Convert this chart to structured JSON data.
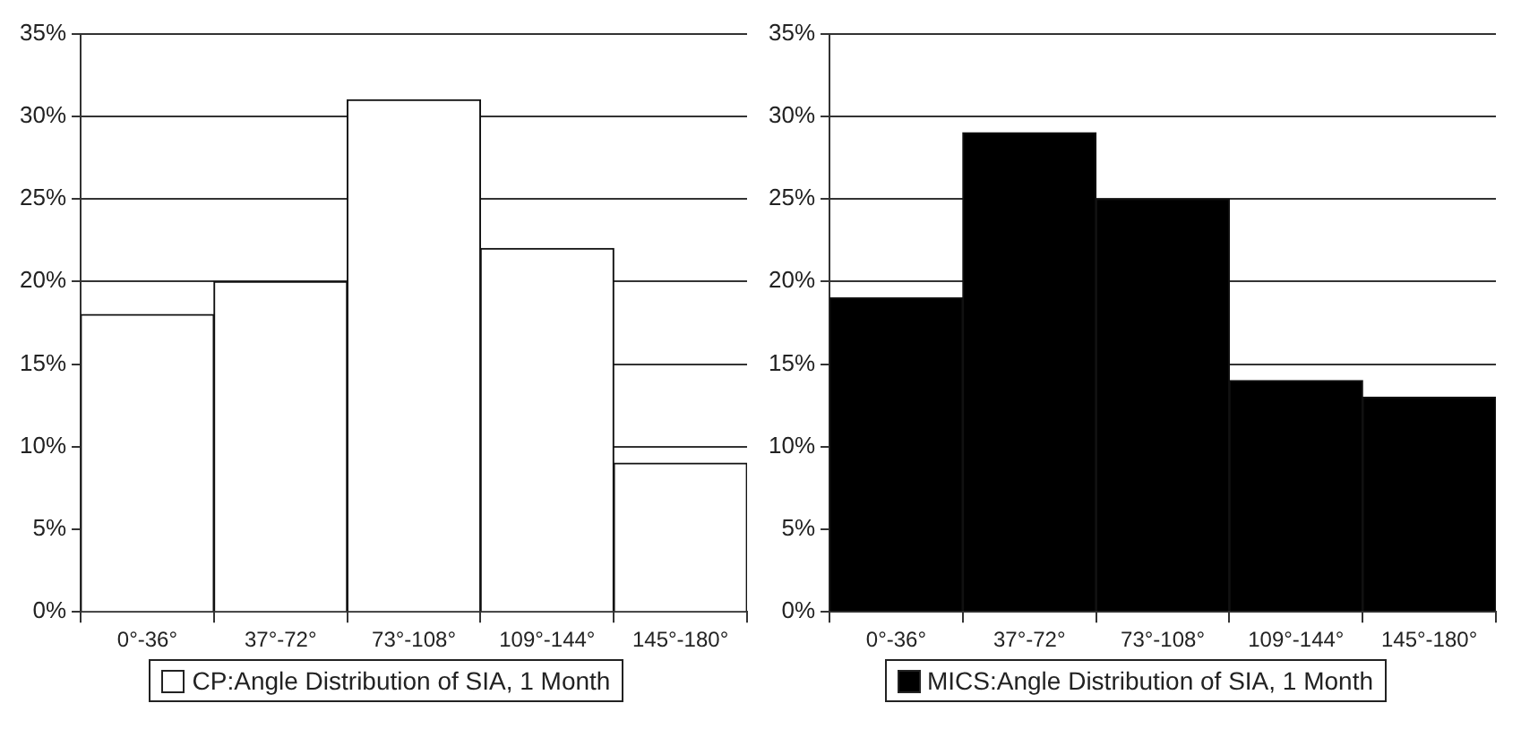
{
  "chart_data": [
    {
      "type": "bar",
      "categories": [
        "0°-36°",
        "37°-72°",
        "73°-108°",
        "109°-144°",
        "145°-180°"
      ],
      "series": [
        {
          "name": "CP:Angle Distribution of SIA, 1 Month",
          "color": "#ffffff",
          "values": [
            18,
            20,
            31,
            22,
            9
          ]
        }
      ],
      "ylim": [
        0,
        35
      ],
      "yticks": [
        {
          "value": 0,
          "label": "0%"
        },
        {
          "value": 5,
          "label": "5%"
        },
        {
          "value": 10,
          "label": "10%"
        },
        {
          "value": 15,
          "label": "15%"
        },
        {
          "value": 20,
          "label": "20%"
        },
        {
          "value": 25,
          "label": "25%"
        },
        {
          "value": 30,
          "label": "30%"
        },
        {
          "value": 35,
          "label": "35%"
        }
      ],
      "grid": "y",
      "legend": "bottom"
    },
    {
      "type": "bar",
      "categories": [
        "0°-36°",
        "37°-72°",
        "73°-108°",
        "109°-144°",
        "145°-180°"
      ],
      "series": [
        {
          "name": "MICS:Angle Distribution of SIA, 1 Month",
          "color": "#000000",
          "values": [
            19,
            29,
            25,
            14,
            13
          ]
        }
      ],
      "ylim": [
        0,
        35
      ],
      "yticks": [
        {
          "value": 0,
          "label": "0%"
        },
        {
          "value": 5,
          "label": "5%"
        },
        {
          "value": 10,
          "label": "10%"
        },
        {
          "value": 15,
          "label": "15%"
        },
        {
          "value": 20,
          "label": "20%"
        },
        {
          "value": 25,
          "label": "25%"
        },
        {
          "value": 30,
          "label": "30%"
        },
        {
          "value": 35,
          "label": "35%"
        }
      ],
      "grid": "y",
      "legend": "bottom"
    }
  ]
}
